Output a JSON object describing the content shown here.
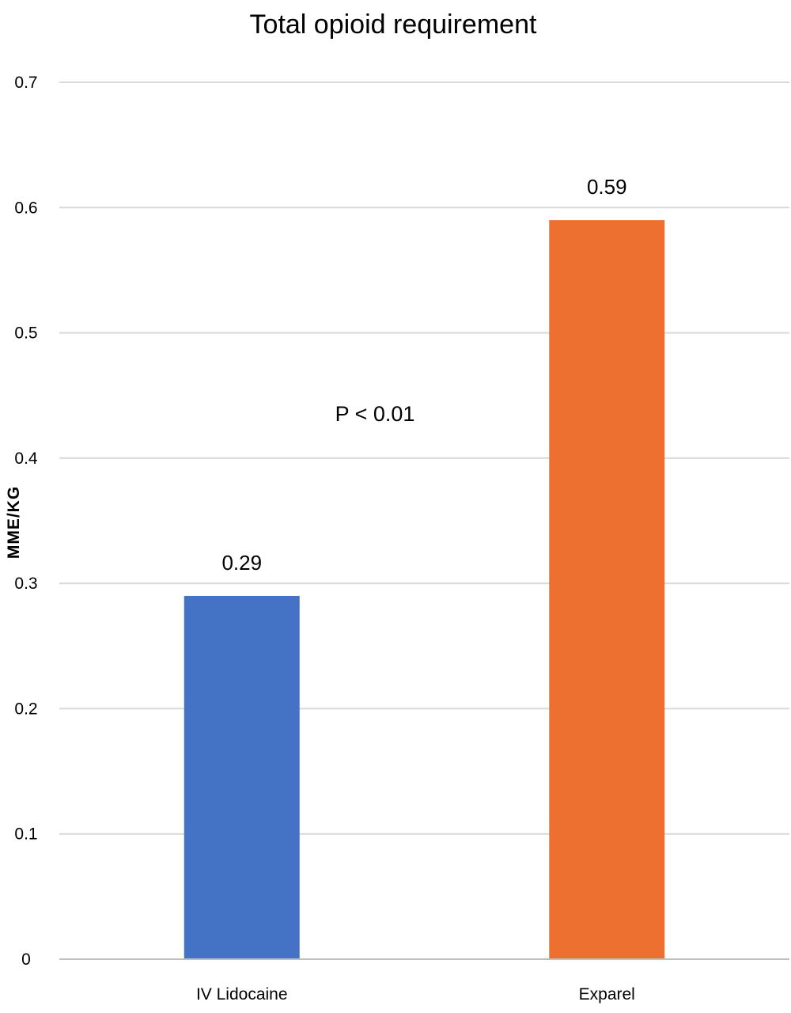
{
  "chart_data": {
    "type": "bar",
    "title": "Total opioid requirement",
    "ylabel": "MME/KG",
    "xlabel": "",
    "categories": [
      "IV Lidocaine",
      "Exparel"
    ],
    "values": [
      0.29,
      0.59
    ],
    "value_labels": [
      "0.29",
      "0.59"
    ],
    "colors": [
      "#4472c4",
      "#ed7031"
    ],
    "ylim": [
      0,
      0.7
    ],
    "yticks": [
      {
        "value": 0,
        "label": "0"
      },
      {
        "value": 0.1,
        "label": "0.1"
      },
      {
        "value": 0.2,
        "label": "0.2"
      },
      {
        "value": 0.3,
        "label": "0.3"
      },
      {
        "value": 0.4,
        "label": "0.4"
      },
      {
        "value": 0.5,
        "label": "0.5"
      },
      {
        "value": 0.6,
        "label": "0.6"
      },
      {
        "value": 0.7,
        "label": "0.7"
      }
    ],
    "grid": true,
    "legend": "none",
    "annotation": "P < 0.01"
  }
}
